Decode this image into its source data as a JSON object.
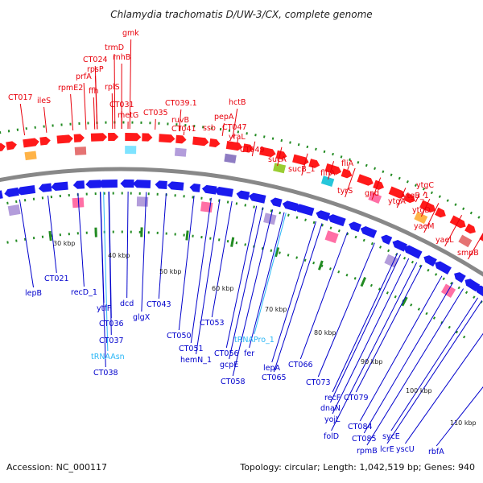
{
  "title": "Chlamydia trachomatis D/UW-3/CX, complete genome",
  "footer": {
    "accession": "Accession: NC_000117",
    "summary": "Topology: circular; Length: 1,042,519 bp; Genes: 940"
  },
  "colors": {
    "forward_label": "#e8000b",
    "reverse_label": "#0000cc",
    "rna_label": "#29b6f6",
    "backbone": "#888888",
    "cds": "#ff1a1a",
    "cds_rev": "#1a1aee",
    "tick_mark": "#228b22"
  },
  "ticks": [
    "30 kbp",
    "40 kbp",
    "50 kbp",
    "60 kbp",
    "70 kbp",
    "80 kbp",
    "90 kbp",
    "100 kbp",
    "110 kbp"
  ],
  "forward_labels": [
    "CT017",
    "ileS",
    "rpmE2",
    "prfA",
    "CT024",
    "rpsP",
    "ffh",
    "trmD",
    "rnhB",
    "gmk",
    "rplS",
    "CT031",
    "metG",
    "CT035",
    "CT039.1",
    "ruvB",
    "CT041",
    "ssb",
    "hctB",
    "pepA",
    "CT047",
    "yraL",
    "CT049",
    "sucA",
    "sucB_1",
    "flhA",
    "fliA",
    "tyrS",
    "gnd",
    "ytgA",
    "ytgC",
    "ytgB_1",
    "ytgD",
    "yaeM",
    "yaeL",
    "smpB"
  ],
  "reverse_labels": [
    "lepB",
    "CT021",
    "recD_1",
    "ytfF",
    "dcd",
    "CT036",
    "CT037",
    "CT038",
    "glgX",
    "CT043",
    "CT050",
    "CT051",
    "hemN_1",
    "CT053",
    "CT056",
    "fer",
    "gcpE",
    "CT058",
    "lepA",
    "CT065",
    "CT066",
    "CT073",
    "recF",
    "CT079",
    "dnaN",
    "yojL",
    "folD",
    "CT084",
    "CT085",
    "rpmB",
    "sycE",
    "lcrE",
    "yscU",
    "rbfA"
  ],
  "rna_labels": [
    "tRNAAsn",
    "tRNAPro_1"
  ]
}
